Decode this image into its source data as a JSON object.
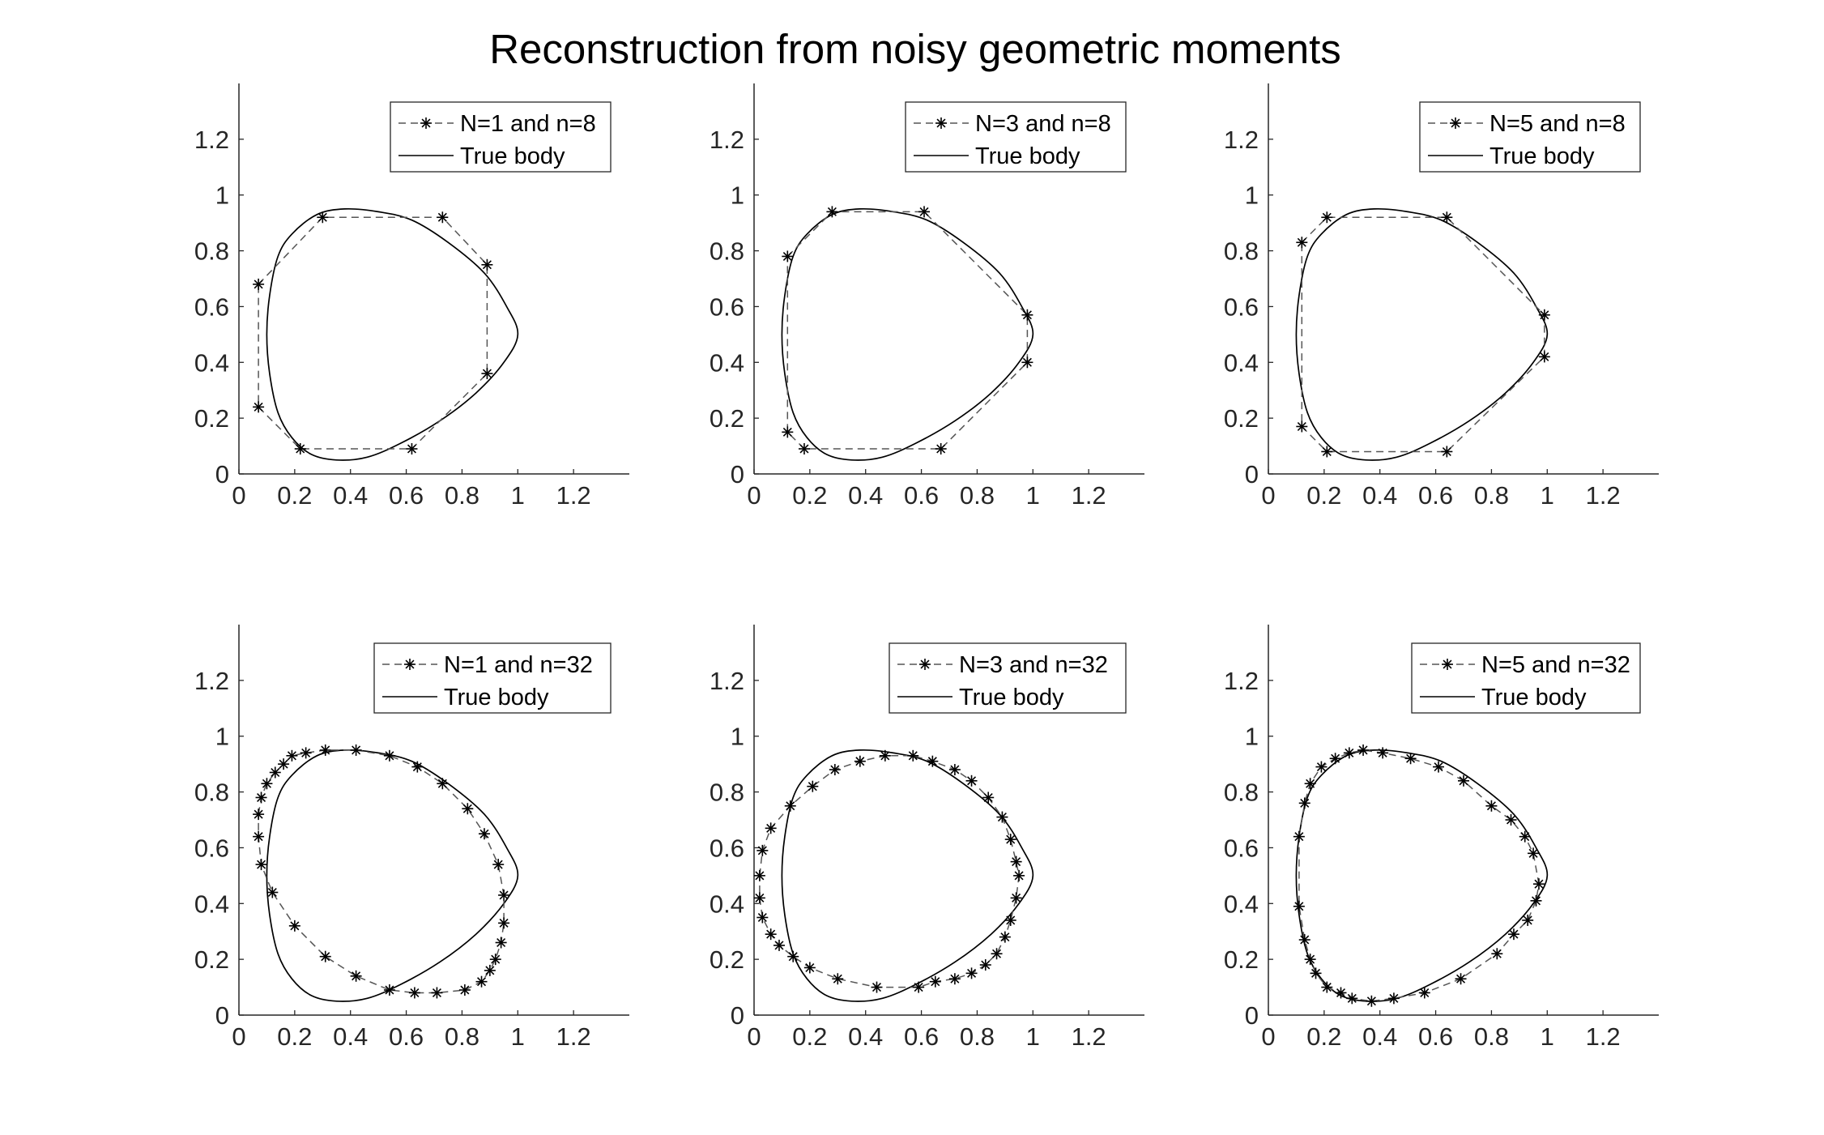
{
  "figure_title": "Reconstruction from noisy geometric moments",
  "chart_data": [
    {
      "type": "line",
      "legend_placement": "top-right",
      "xlim": [
        0,
        1.4
      ],
      "ylim": [
        0,
        1.4
      ],
      "xticks": [
        "0",
        "0.2",
        "0.4",
        "0.6",
        "0.8",
        "1",
        "1.2"
      ],
      "yticks": [
        "0",
        "0.2",
        "0.4",
        "0.6",
        "0.8",
        "1",
        "1.2"
      ],
      "grid": false,
      "series": [
        {
          "name": "N=1 and n=8",
          "style": "dashed-star",
          "color": "#555555",
          "points": [
            [
              0.07,
              0.68
            ],
            [
              0.3,
              0.92
            ],
            [
              0.73,
              0.92
            ],
            [
              0.89,
              0.75
            ],
            [
              0.89,
              0.36
            ],
            [
              0.62,
              0.09
            ],
            [
              0.22,
              0.09
            ],
            [
              0.07,
              0.24
            ],
            [
              0.07,
              0.68
            ]
          ]
        },
        {
          "name": "True body",
          "style": "solid",
          "color": "#000000",
          "shape": "true_body"
        }
      ]
    },
    {
      "type": "line",
      "legend_placement": "top-right",
      "xlim": [
        0,
        1.4
      ],
      "ylim": [
        0,
        1.4
      ],
      "xticks": [
        "0",
        "0.2",
        "0.4",
        "0.6",
        "0.8",
        "1",
        "1.2"
      ],
      "yticks": [
        "0",
        "0.2",
        "0.4",
        "0.6",
        "0.8",
        "1",
        "1.2"
      ],
      "grid": false,
      "series": [
        {
          "name": "N=3 and n=8",
          "style": "dashed-star",
          "color": "#555555",
          "points": [
            [
              0.12,
              0.78
            ],
            [
              0.28,
              0.94
            ],
            [
              0.61,
              0.94
            ],
            [
              0.98,
              0.57
            ],
            [
              0.98,
              0.4
            ],
            [
              0.67,
              0.09
            ],
            [
              0.18,
              0.09
            ],
            [
              0.12,
              0.15
            ],
            [
              0.12,
              0.78
            ]
          ]
        },
        {
          "name": "True body",
          "style": "solid",
          "color": "#000000",
          "shape": "true_body"
        }
      ]
    },
    {
      "type": "line",
      "legend_placement": "top-right",
      "xlim": [
        0,
        1.4
      ],
      "ylim": [
        0,
        1.4
      ],
      "xticks": [
        "0",
        "0.2",
        "0.4",
        "0.6",
        "0.8",
        "1",
        "1.2"
      ],
      "yticks": [
        "0",
        "0.2",
        "0.4",
        "0.6",
        "0.8",
        "1",
        "1.2"
      ],
      "grid": false,
      "series": [
        {
          "name": "N=5 and n=8",
          "style": "dashed-star",
          "color": "#555555",
          "points": [
            [
              0.12,
              0.83
            ],
            [
              0.21,
              0.92
            ],
            [
              0.64,
              0.92
            ],
            [
              0.99,
              0.57
            ],
            [
              0.99,
              0.42
            ],
            [
              0.64,
              0.08
            ],
            [
              0.21,
              0.08
            ],
            [
              0.12,
              0.17
            ],
            [
              0.12,
              0.83
            ]
          ]
        },
        {
          "name": "True body",
          "style": "solid",
          "color": "#000000",
          "shape": "true_body"
        }
      ]
    },
    {
      "type": "line",
      "legend_placement": "top-right",
      "xlim": [
        0,
        1.4
      ],
      "ylim": [
        0,
        1.4
      ],
      "xticks": [
        "0",
        "0.2",
        "0.4",
        "0.6",
        "0.8",
        "1",
        "1.2"
      ],
      "yticks": [
        "0",
        "0.2",
        "0.4",
        "0.6",
        "0.8",
        "1",
        "1.2"
      ],
      "grid": false,
      "series": [
        {
          "name": "N=1 and n=32",
          "style": "dashed-star",
          "color": "#555555",
          "points": [
            [
              0.07,
              0.72
            ],
            [
              0.08,
              0.78
            ],
            [
              0.1,
              0.83
            ],
            [
              0.13,
              0.87
            ],
            [
              0.16,
              0.9
            ],
            [
              0.19,
              0.93
            ],
            [
              0.24,
              0.94
            ],
            [
              0.31,
              0.95
            ],
            [
              0.42,
              0.95
            ],
            [
              0.54,
              0.93
            ],
            [
              0.64,
              0.89
            ],
            [
              0.73,
              0.83
            ],
            [
              0.82,
              0.74
            ],
            [
              0.88,
              0.65
            ],
            [
              0.93,
              0.54
            ],
            [
              0.95,
              0.43
            ],
            [
              0.95,
              0.33
            ],
            [
              0.94,
              0.26
            ],
            [
              0.92,
              0.2
            ],
            [
              0.9,
              0.16
            ],
            [
              0.87,
              0.12
            ],
            [
              0.81,
              0.09
            ],
            [
              0.71,
              0.08
            ],
            [
              0.63,
              0.08
            ],
            [
              0.54,
              0.09
            ],
            [
              0.42,
              0.14
            ],
            [
              0.31,
              0.21
            ],
            [
              0.2,
              0.32
            ],
            [
              0.12,
              0.44
            ],
            [
              0.08,
              0.54
            ],
            [
              0.07,
              0.64
            ],
            [
              0.07,
              0.72
            ]
          ]
        },
        {
          "name": "True body",
          "style": "solid",
          "color": "#000000",
          "shape": "true_body"
        }
      ]
    },
    {
      "type": "line",
      "legend_placement": "top-right",
      "xlim": [
        0,
        1.4
      ],
      "ylim": [
        0,
        1.4
      ],
      "xticks": [
        "0",
        "0.2",
        "0.4",
        "0.6",
        "0.8",
        "1",
        "1.2"
      ],
      "yticks": [
        "0",
        "0.2",
        "0.4",
        "0.6",
        "0.8",
        "1",
        "1.2"
      ],
      "grid": false,
      "series": [
        {
          "name": "N=3 and n=32",
          "style": "dashed-star",
          "color": "#555555",
          "points": [
            [
              0.02,
              0.5
            ],
            [
              0.03,
              0.59
            ],
            [
              0.06,
              0.67
            ],
            [
              0.13,
              0.75
            ],
            [
              0.21,
              0.82
            ],
            [
              0.29,
              0.88
            ],
            [
              0.38,
              0.91
            ],
            [
              0.47,
              0.93
            ],
            [
              0.57,
              0.93
            ],
            [
              0.64,
              0.91
            ],
            [
              0.72,
              0.88
            ],
            [
              0.78,
              0.84
            ],
            [
              0.84,
              0.78
            ],
            [
              0.89,
              0.71
            ],
            [
              0.92,
              0.63
            ],
            [
              0.94,
              0.55
            ],
            [
              0.95,
              0.5
            ],
            [
              0.94,
              0.42
            ],
            [
              0.92,
              0.34
            ],
            [
              0.9,
              0.28
            ],
            [
              0.87,
              0.22
            ],
            [
              0.83,
              0.18
            ],
            [
              0.78,
              0.15
            ],
            [
              0.72,
              0.13
            ],
            [
              0.65,
              0.12
            ],
            [
              0.59,
              0.1
            ],
            [
              0.44,
              0.1
            ],
            [
              0.3,
              0.13
            ],
            [
              0.2,
              0.17
            ],
            [
              0.14,
              0.21
            ],
            [
              0.09,
              0.25
            ],
            [
              0.06,
              0.29
            ],
            [
              0.03,
              0.35
            ],
            [
              0.02,
              0.42
            ],
            [
              0.02,
              0.5
            ]
          ]
        },
        {
          "name": "True body",
          "style": "solid",
          "color": "#000000",
          "shape": "true_body"
        }
      ]
    },
    {
      "type": "line",
      "legend_placement": "top-right",
      "xlim": [
        0,
        1.4
      ],
      "ylim": [
        0,
        1.4
      ],
      "xticks": [
        "0",
        "0.2",
        "0.4",
        "0.6",
        "0.8",
        "1",
        "1.2"
      ],
      "yticks": [
        "0",
        "0.2",
        "0.4",
        "0.6",
        "0.8",
        "1",
        "1.2"
      ],
      "grid": false,
      "series": [
        {
          "name": "N=5 and n=32",
          "style": "dashed-star",
          "color": "#555555",
          "points": [
            [
              0.11,
              0.64
            ],
            [
              0.13,
              0.76
            ],
            [
              0.15,
              0.83
            ],
            [
              0.19,
              0.89
            ],
            [
              0.24,
              0.92
            ],
            [
              0.29,
              0.94
            ],
            [
              0.34,
              0.95
            ],
            [
              0.41,
              0.94
            ],
            [
              0.51,
              0.92
            ],
            [
              0.61,
              0.89
            ],
            [
              0.7,
              0.84
            ],
            [
              0.8,
              0.75
            ],
            [
              0.87,
              0.7
            ],
            [
              0.92,
              0.64
            ],
            [
              0.95,
              0.58
            ],
            [
              0.97,
              0.47
            ],
            [
              0.96,
              0.41
            ],
            [
              0.93,
              0.34
            ],
            [
              0.88,
              0.29
            ],
            [
              0.82,
              0.22
            ],
            [
              0.69,
              0.13
            ],
            [
              0.56,
              0.08
            ],
            [
              0.45,
              0.06
            ],
            [
              0.37,
              0.05
            ],
            [
              0.3,
              0.06
            ],
            [
              0.26,
              0.08
            ],
            [
              0.21,
              0.1
            ],
            [
              0.17,
              0.15
            ],
            [
              0.15,
              0.2
            ],
            [
              0.13,
              0.27
            ],
            [
              0.11,
              0.39
            ],
            [
              0.11,
              0.64
            ]
          ]
        },
        {
          "name": "True body",
          "style": "solid",
          "color": "#000000",
          "shape": "true_body"
        }
      ]
    }
  ]
}
